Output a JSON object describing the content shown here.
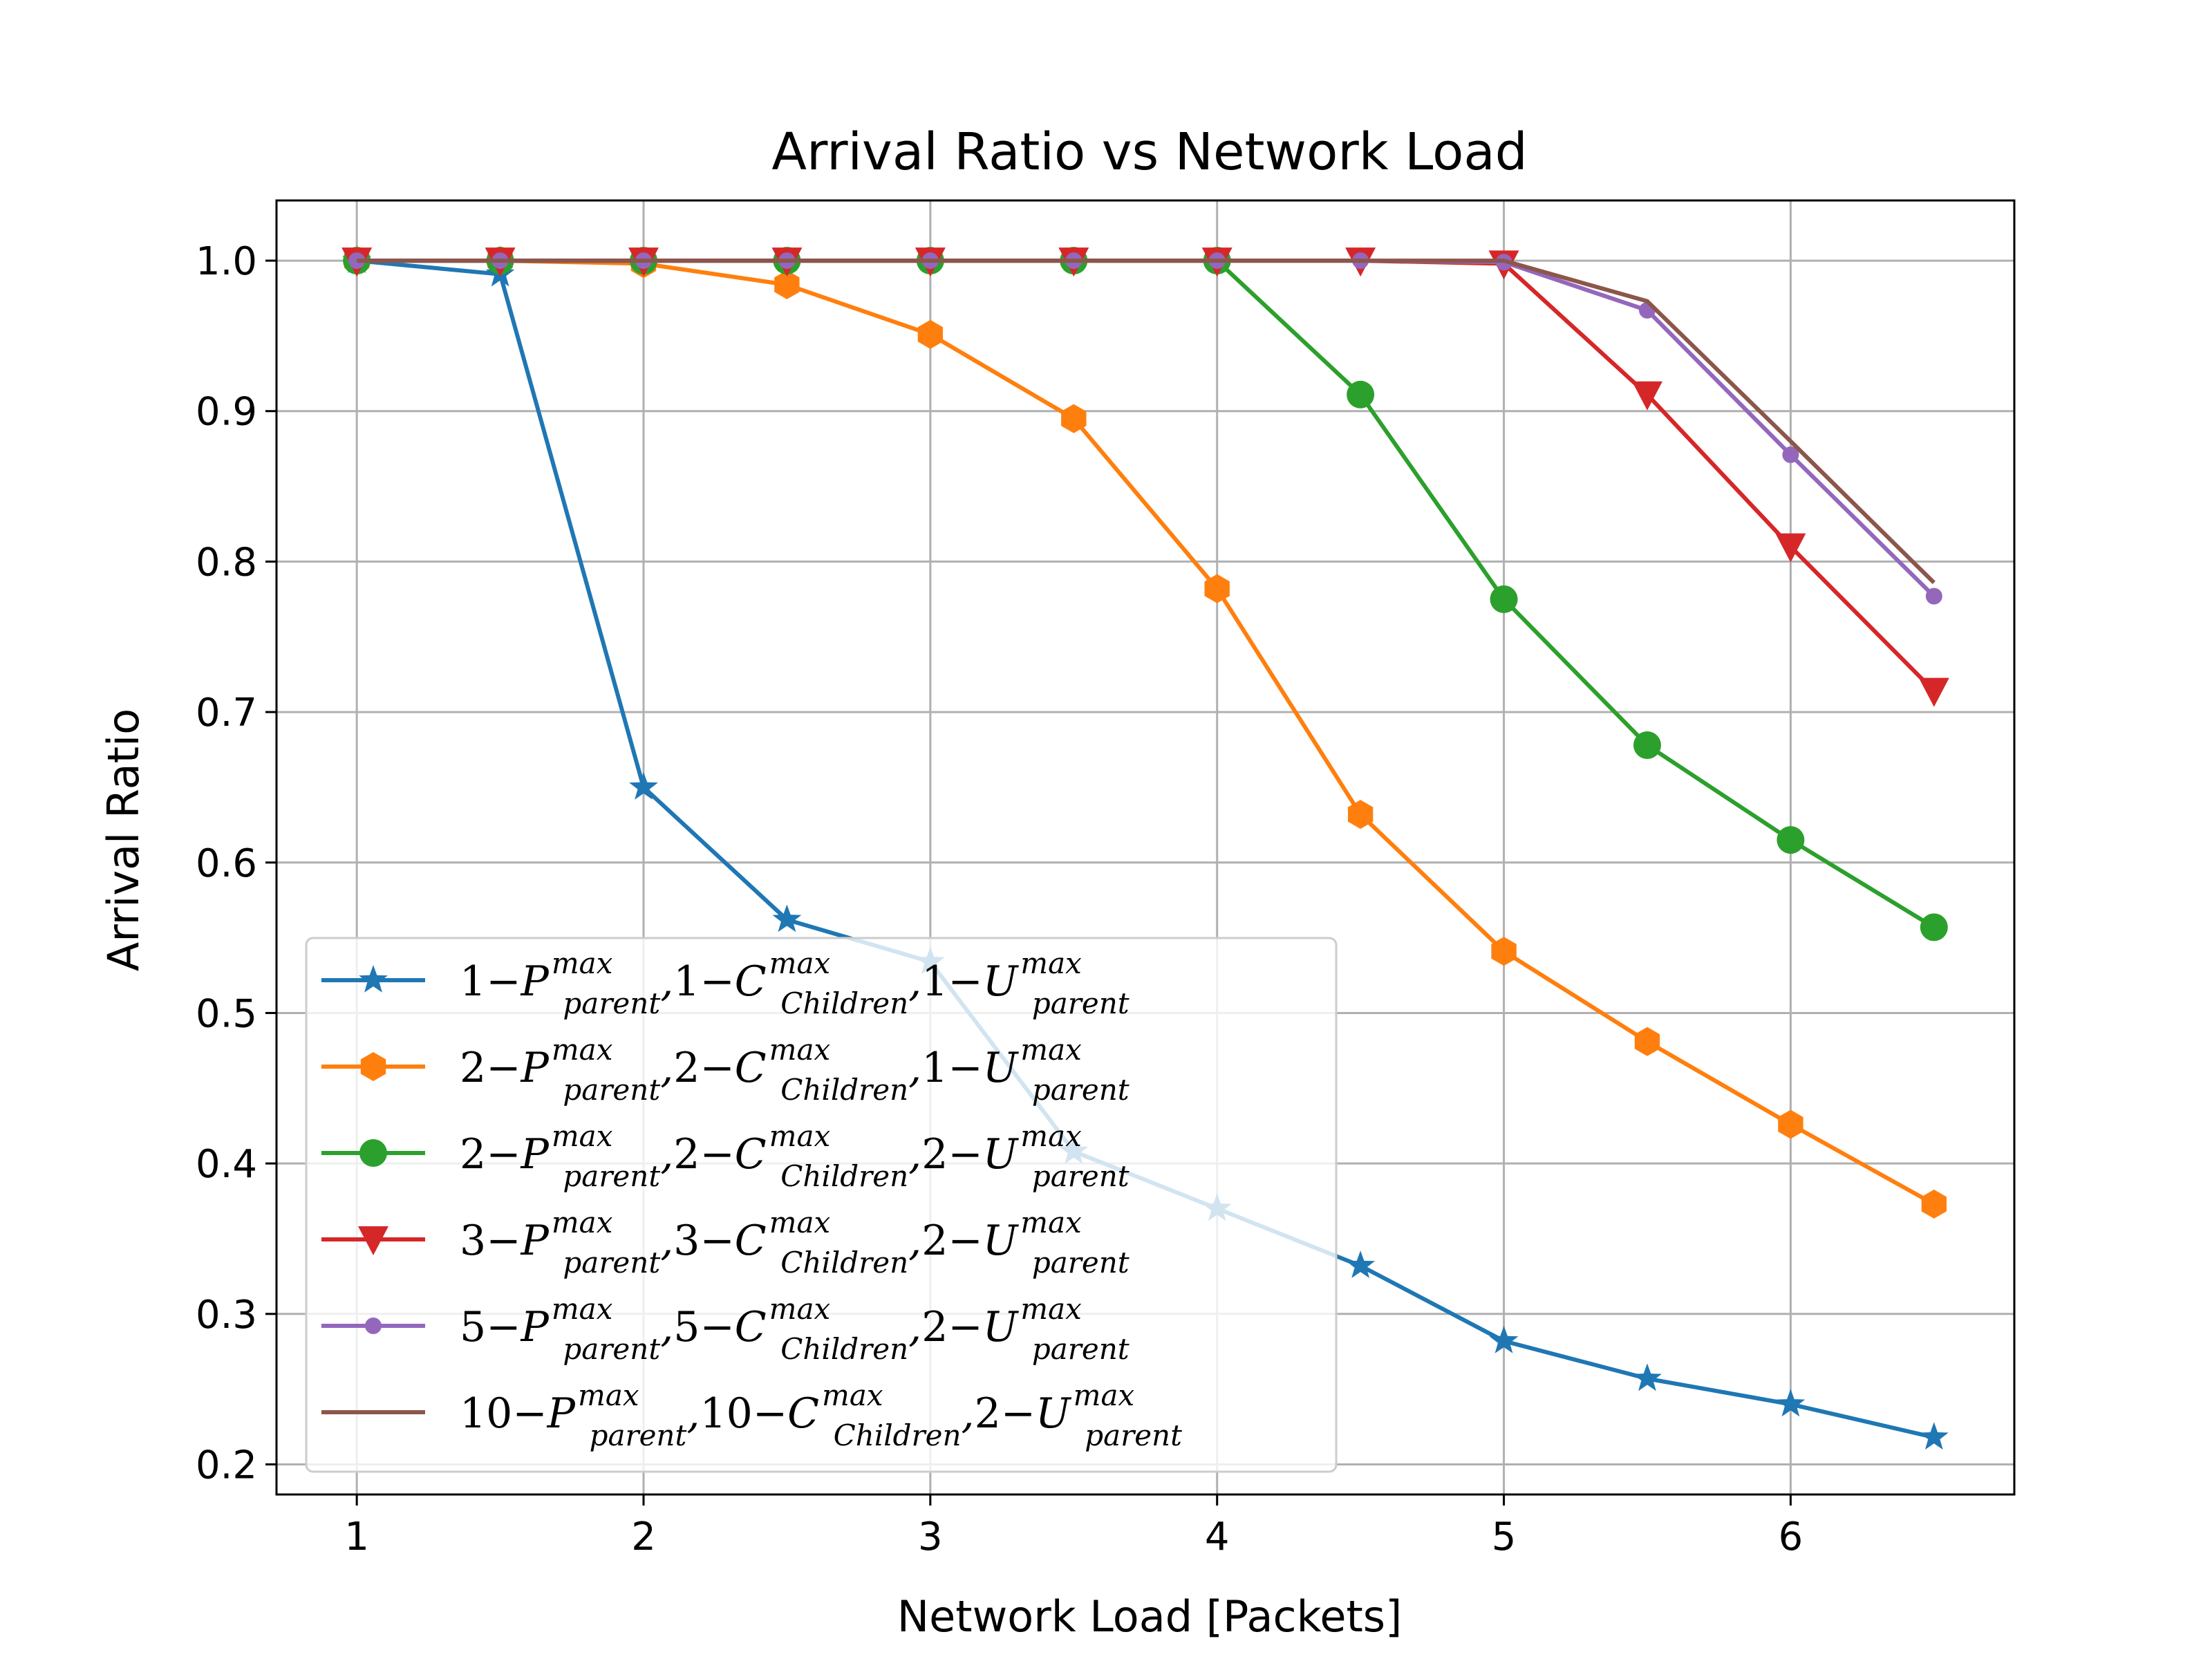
{
  "chart_data": {
    "type": "line",
    "title": "Arrival Ratio vs Network Load",
    "xlabel": "Network Load [Packets]",
    "ylabel": "Arrival Ratio",
    "xlim": [
      0.72,
      6.78
    ],
    "ylim": [
      0.18,
      1.04
    ],
    "xticks": [
      "1",
      "2",
      "3",
      "4",
      "5",
      "6"
    ],
    "yticks": [
      "0.2",
      "0.3",
      "0.4",
      "0.5",
      "0.6",
      "0.7",
      "0.8",
      "0.9",
      "1.0"
    ],
    "grid": true,
    "legend_position": "lower-left",
    "x": [
      1,
      1.5,
      2,
      2.5,
      3,
      3.5,
      4,
      4.5,
      5,
      5.5,
      6,
      6.5
    ],
    "series": [
      {
        "legend": {
          "p": "1",
          "c": "1",
          "u": "1"
        },
        "color": "#1f77b4",
        "marker": "star",
        "values": [
          1.0,
          0.991,
          0.65,
          0.562,
          0.534,
          0.408,
          0.37,
          0.332,
          0.282,
          0.257,
          0.24,
          0.218
        ]
      },
      {
        "legend": {
          "p": "2",
          "c": "2",
          "u": "1"
        },
        "color": "#ff7f0e",
        "marker": "hexagon",
        "values": [
          1.0,
          1.0,
          0.998,
          0.984,
          0.951,
          0.895,
          0.782,
          0.632,
          0.541,
          0.481,
          0.426,
          0.373
        ]
      },
      {
        "legend": {
          "p": "2",
          "c": "2",
          "u": "2"
        },
        "color": "#2ca02c",
        "marker": "circle",
        "values": [
          1.0,
          1.0,
          1.0,
          1.0,
          1.0,
          1.0,
          1.0,
          0.911,
          0.775,
          0.678,
          0.615,
          0.557
        ]
      },
      {
        "legend": {
          "p": "3",
          "c": "3",
          "u": "2"
        },
        "color": "#d62728",
        "marker": "triangle-down",
        "values": [
          1.0,
          1.0,
          1.0,
          1.0,
          1.0,
          1.0,
          1.0,
          1.0,
          0.998,
          0.911,
          0.81,
          0.714
        ]
      },
      {
        "legend": {
          "p": "5",
          "c": "5",
          "u": "2"
        },
        "color": "#9467bd",
        "marker": "small-circle",
        "values": [
          1.0,
          1.0,
          1.0,
          1.0,
          1.0,
          1.0,
          1.0,
          1.0,
          0.999,
          0.967,
          0.871,
          0.777
        ]
      },
      {
        "legend": {
          "p": "10",
          "c": "10",
          "u": "2"
        },
        "color": "#8c564b",
        "marker": "none",
        "values": [
          1.0,
          1.0,
          1.0,
          1.0,
          1.0,
          1.0,
          1.0,
          1.0,
          1.0,
          0.973,
          0.88,
          0.786
        ]
      }
    ]
  }
}
